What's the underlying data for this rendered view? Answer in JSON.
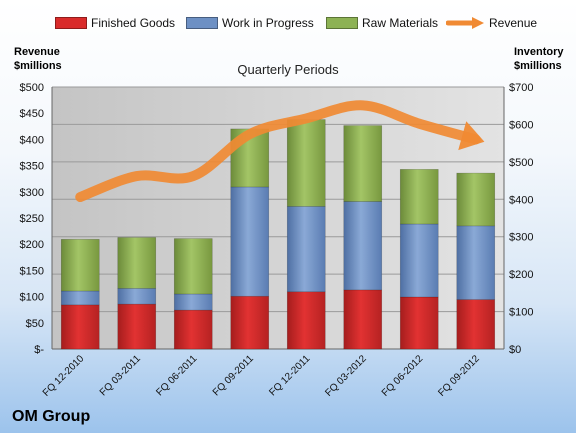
{
  "company": "OM Group",
  "chart_data": {
    "type": "bar",
    "stacked": true,
    "title": "Quarterly Periods",
    "categories": [
      "FQ 12-2010",
      "FQ 03-2011",
      "FQ 06-2011",
      "FQ 09-2011",
      "FQ 12-2011",
      "FQ 03-2012",
      "FQ 06-2012",
      "FQ 09-2012"
    ],
    "series": [
      {
        "name": "Finished Goods",
        "axis": "right",
        "color": "#d92b2b",
        "values": [
          118,
          120,
          104,
          141,
          153,
          158,
          139,
          132
        ]
      },
      {
        "name": "Work in Progress",
        "axis": "right",
        "color": "#6d90c4",
        "values": [
          37,
          42,
          43,
          292,
          228,
          236,
          195,
          197
        ]
      },
      {
        "name": "Raw Materials",
        "axis": "right",
        "color": "#8db254",
        "values": [
          138,
          136,
          148,
          155,
          232,
          203,
          146,
          141
        ]
      },
      {
        "name": "Revenue",
        "type": "line",
        "axis": "left",
        "color": "#f08a33",
        "values": [
          290,
          330,
          330,
          410,
          440,
          465,
          430,
          400
        ]
      }
    ],
    "ylabel_left": [
      "Revenue",
      "$millions"
    ],
    "ylabel_right": [
      "Inventory",
      "$millions"
    ],
    "ylim_left": [
      0,
      500
    ],
    "ylim_right": [
      0,
      700
    ],
    "yticks_left": [
      "$-",
      "$50",
      "$100",
      "$150",
      "$200",
      "$250",
      "$300",
      "$350",
      "$400",
      "$450",
      "$500"
    ],
    "yticks_right": [
      "$0",
      "$100",
      "$200",
      "$300",
      "$400",
      "$500",
      "$600",
      "$700"
    ],
    "grid": true,
    "legend_position": "top"
  }
}
